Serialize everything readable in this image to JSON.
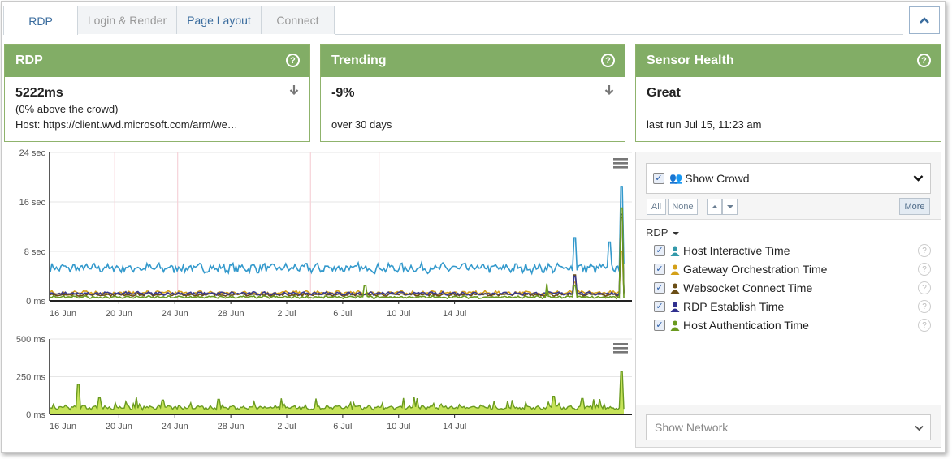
{
  "tabs": [
    {
      "label": "RDP",
      "state": "active"
    },
    {
      "label": "Login & Render",
      "state": "inactive"
    },
    {
      "label": "Page Layout",
      "state": "link"
    },
    {
      "label": "Connect",
      "state": "inactive"
    }
  ],
  "colors": {
    "card_header": "#82ad66",
    "host_interactive": "#3399cc",
    "gateway_orchestration": "#d4a017",
    "websocket_connect": "#6b4e16",
    "rdp_establish": "#3a3a8c",
    "host_authentication": "#6a9a1f",
    "network_fill": "#c6e35a"
  },
  "cards": {
    "rdp": {
      "title": "RDP",
      "value": "5222ms",
      "line2": "(0% above the crowd)",
      "line3": "Host: https://client.wvd.microsoft.com/arm/we…"
    },
    "trending": {
      "title": "Trending",
      "value": "-9%",
      "line2": "over 30 days"
    },
    "sensor_health": {
      "title": "Sensor Health",
      "value": "Great",
      "line2": "last run Jul 15, 11:23 am"
    }
  },
  "chart_data": [
    {
      "type": "line",
      "title": "",
      "y_ticks": [
        "24 sec",
        "16 sec",
        "8 sec",
        "0 ms"
      ],
      "x_ticks": [
        "16 Jun",
        "20 Jun",
        "24 Jun",
        "28 Jun",
        "2 Jul",
        "6 Jul",
        "10 Jul",
        "14 Jul"
      ],
      "ylim": [
        0,
        24
      ],
      "y_unit": "sec",
      "series": [
        {
          "name": "Host Interactive Time",
          "baseline": 5.3,
          "spikes": [
            [
              37.5,
              10.2
            ],
            [
              40,
              9.5
            ],
            [
              40.8,
              18.5
            ]
          ]
        },
        {
          "name": "Gateway Orchestration Time",
          "baseline": 1.3,
          "spikes": [
            [
              37.5,
              3.0
            ],
            [
              40.8,
              8.0
            ]
          ]
        },
        {
          "name": "Websocket Connect Time",
          "baseline": 1.0,
          "spikes": [
            [
              37.5,
              4.2
            ],
            [
              40.8,
              13.5
            ]
          ]
        },
        {
          "name": "RDP Establish Time",
          "baseline": 1.2,
          "spikes": [
            [
              37.5,
              4.0
            ],
            [
              40.8,
              14.0
            ]
          ]
        },
        {
          "name": "Host Authentication Time",
          "baseline": 0.6,
          "spikes": [
            [
              22.5,
              2.5
            ],
            [
              35.5,
              2.8
            ],
            [
              37.5,
              2.5
            ],
            [
              40.8,
              15.0
            ]
          ]
        }
      ],
      "x_domain_days": [
        0,
        41
      ]
    },
    {
      "type": "area",
      "title": "",
      "y_ticks": [
        "500 ms",
        "250 ms",
        "0 ms"
      ],
      "x_ticks": [
        "16 Jun",
        "20 Jun",
        "24 Jun",
        "28 Jun",
        "2 Jul",
        "6 Jul",
        "10 Jul",
        "14 Jul"
      ],
      "ylim": [
        0,
        500
      ],
      "series": [
        {
          "name": "Network",
          "baseline": 45,
          "spikes": [
            [
              2.0,
              200
            ],
            [
              3.5,
              110
            ],
            [
              8,
              95
            ],
            [
              12,
              100
            ],
            [
              19,
              105
            ],
            [
              26,
              115
            ],
            [
              36,
              120
            ],
            [
              38,
              105
            ],
            [
              40.8,
              285
            ]
          ]
        }
      ],
      "x_domain_days": [
        0,
        41
      ]
    }
  ],
  "panel": {
    "show_crowd": "Show Crowd",
    "btn_all": "All",
    "btn_none": "None",
    "btn_more": "More",
    "group": "RDP",
    "metrics": [
      {
        "label": "Host Interactive Time",
        "color": "#3399aa"
      },
      {
        "label": "Gateway Orchestration Time",
        "color": "#d4a017"
      },
      {
        "label": "Websocket Connect Time",
        "color": "#6b4e16"
      },
      {
        "label": "RDP Establish Time",
        "color": "#2f2f8f"
      },
      {
        "label": "Host Authentication Time",
        "color": "#6a9a1f"
      }
    ],
    "show_network": "Show Network"
  }
}
